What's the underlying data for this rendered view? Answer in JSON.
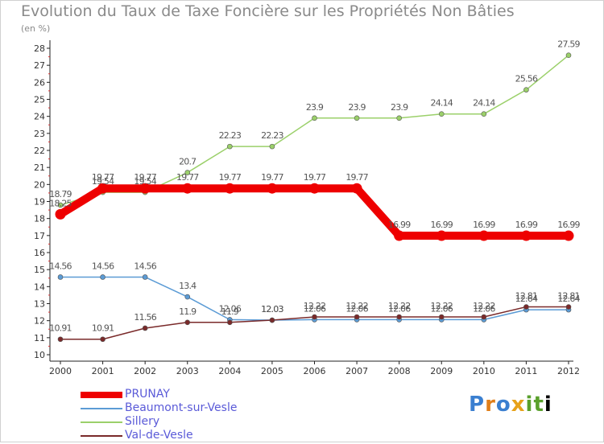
{
  "page": {
    "title": "Evolution du Taux de Taxe Foncière sur les Propriétés Non Bâties",
    "unit_label": "(en %)",
    "logo": [
      "P",
      "r",
      "o",
      "x",
      "i",
      "t",
      "i"
    ]
  },
  "chart_data": {
    "type": "line",
    "title": "Evolution du Taux de Taxe Foncière sur les Propriétés Non Bâties",
    "ylabel": "(en %)",
    "xlabel": "",
    "x": [
      "2000",
      "2001",
      "2002",
      "2003",
      "2004",
      "2005",
      "2006",
      "2007",
      "2008",
      "2009",
      "2010",
      "2011",
      "2012"
    ],
    "ylim": [
      10,
      28
    ],
    "yticks": [
      "10",
      "11",
      "12",
      "13",
      "14",
      "15",
      "16",
      "17",
      "18",
      "19",
      "20",
      "21",
      "22",
      "23",
      "24",
      "25",
      "26",
      "27",
      "28"
    ],
    "grid": false,
    "legend_position": "bottom-left",
    "series": [
      {
        "name": "PRUNAY",
        "color": "#ee0000",
        "values": [
          18.25,
          19.77,
          19.77,
          19.77,
          19.77,
          19.77,
          19.77,
          19.77,
          16.99,
          16.99,
          16.99,
          16.99,
          16.99
        ],
        "labels": [
          "18.25",
          "19.77",
          "19.77",
          "19.77",
          "19.77",
          "19.77",
          "19.77",
          "19.77",
          "16.99",
          "16.99",
          "16.99",
          "16.99",
          "16.99"
        ]
      },
      {
        "name": "Beaumont-sur-Vesle",
        "color": "#5b9bd5",
        "values": [
          14.56,
          14.56,
          14.56,
          13.4,
          12.06,
          12.03,
          12.06,
          12.06,
          12.06,
          12.06,
          12.06,
          12.64,
          12.64
        ],
        "labels": [
          "14.56",
          "14.56",
          "14.56",
          "13.4",
          "12.06",
          "12.03",
          "12.06",
          "12.06",
          "12.06",
          "12.06",
          "12.06",
          "12.64",
          "12.64"
        ]
      },
      {
        "name": "Sillery",
        "color": "#9bd06a",
        "values": [
          18.79,
          19.54,
          19.54,
          20.7,
          22.23,
          22.23,
          23.9,
          23.9,
          23.9,
          24.14,
          24.14,
          25.56,
          27.59
        ],
        "labels": [
          "18.79",
          "19.54",
          "19.54",
          "20.7",
          "22.23",
          "22.23",
          "23.9",
          "23.9",
          "23.9",
          "24.14",
          "24.14",
          "25.56",
          "27.59"
        ]
      },
      {
        "name": "Val-de-Vesle",
        "color": "#7a2a2a",
        "values": [
          10.91,
          10.91,
          11.56,
          11.9,
          11.9,
          12.03,
          12.22,
          12.22,
          12.22,
          12.22,
          12.22,
          12.81,
          12.81
        ],
        "labels": [
          "10.91",
          "10.91",
          "11.56",
          "11.9",
          "11.9",
          "12.03",
          "12.22",
          "12.22",
          "12.22",
          "12.22",
          "12.22",
          "12.81",
          "12.81"
        ]
      }
    ]
  }
}
